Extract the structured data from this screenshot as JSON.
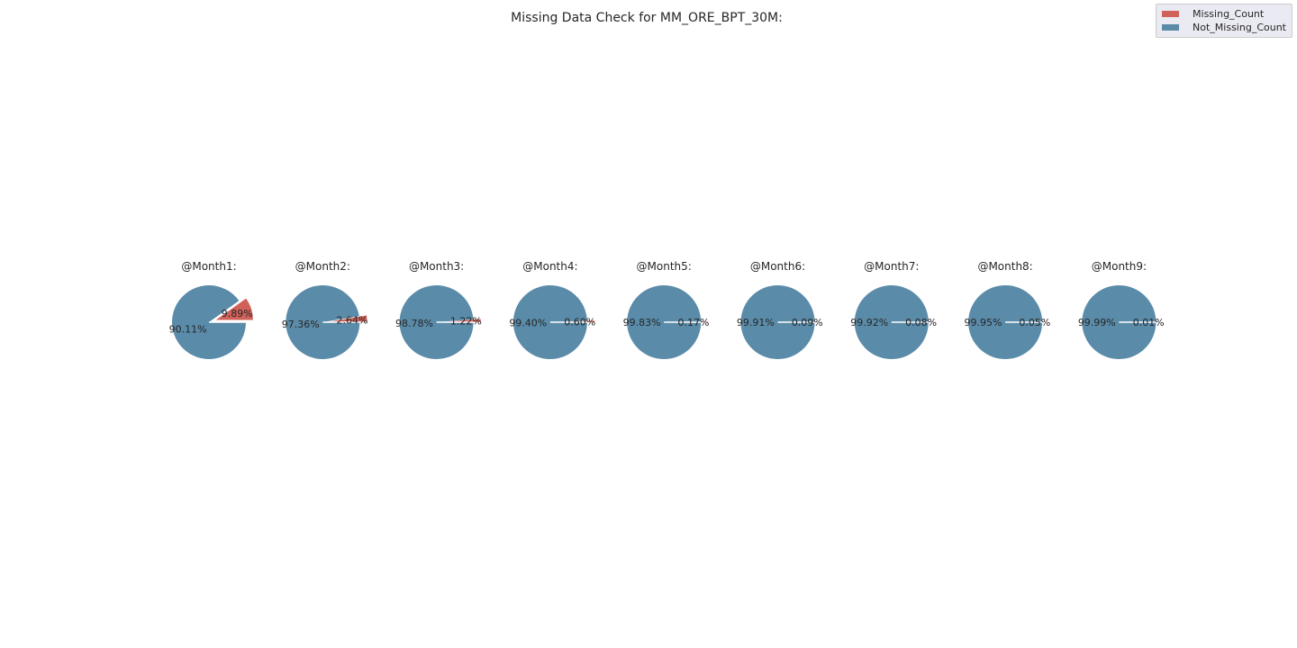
{
  "title": "Missing Data Check for MM_ORE_BPT_30M:",
  "legend": {
    "placement": "top-right",
    "entries": [
      {
        "label": "Missing_Count",
        "color": "#d1625a"
      },
      {
        "label": "Not_Missing_Count",
        "color": "#5a8ba9"
      }
    ]
  },
  "chart_data": {
    "type": "pie",
    "title": "Missing Data Check for MM_ORE_BPT_30M:",
    "series_labels": [
      "Missing_Count",
      "Not_Missing_Count"
    ],
    "colors": [
      "#d1625a",
      "#5a8ba9"
    ],
    "pies": [
      {
        "title": "@Month1:",
        "missing": 9.89,
        "not_missing": 90.11,
        "labels": [
          "9.89%",
          "90.11%"
        ]
      },
      {
        "title": "@Month2:",
        "missing": 2.64,
        "not_missing": 97.36,
        "labels": [
          "2.64%",
          "97.36%"
        ]
      },
      {
        "title": "@Month3:",
        "missing": 1.22,
        "not_missing": 98.78,
        "labels": [
          "1.22%",
          "98.78%"
        ]
      },
      {
        "title": "@Month4:",
        "missing": 0.6,
        "not_missing": 99.4,
        "labels": [
          "0.60%",
          "99.40%"
        ]
      },
      {
        "title": "@Month5:",
        "missing": 0.17,
        "not_missing": 99.83,
        "labels": [
          "0.17%",
          "99.83%"
        ]
      },
      {
        "title": "@Month6:",
        "missing": 0.09,
        "not_missing": 99.91,
        "labels": [
          "0.09%",
          "99.91%"
        ]
      },
      {
        "title": "@Month7:",
        "missing": 0.08,
        "not_missing": 99.92,
        "labels": [
          "0.08%",
          "99.92%"
        ]
      },
      {
        "title": "@Month8:",
        "missing": 0.05,
        "not_missing": 99.95,
        "labels": [
          "0.05%",
          "99.95%"
        ]
      },
      {
        "title": "@Month9:",
        "missing": 0.01,
        "not_missing": 99.99,
        "labels": [
          "0.01%",
          "99.99%"
        ]
      }
    ]
  }
}
